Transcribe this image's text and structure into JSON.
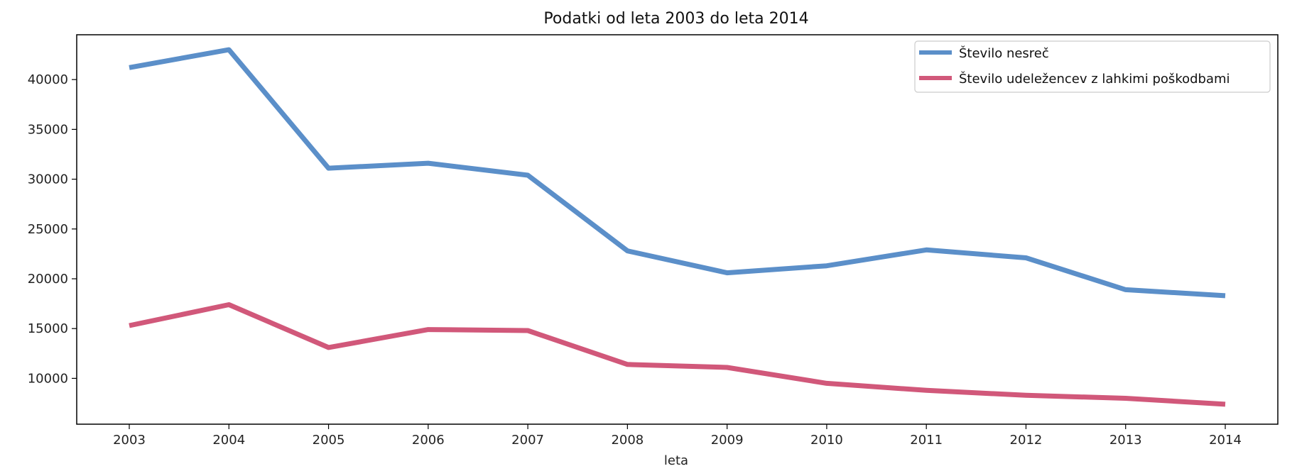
{
  "chart_data": {
    "type": "line",
    "title": "Podatki od leta 2003 do leta 2014",
    "xlabel": "leta",
    "ylabel": "",
    "x": [
      2003,
      2004,
      2005,
      2006,
      2007,
      2008,
      2009,
      2010,
      2011,
      2012,
      2013,
      2014
    ],
    "xticks": [
      "2003",
      "2004",
      "2005",
      "2006",
      "2007",
      "2008",
      "2009",
      "2010",
      "2011",
      "2012",
      "2013",
      "2014"
    ],
    "yticks": [
      "10000",
      "15000",
      "20000",
      "25000",
      "30000",
      "35000",
      "40000"
    ],
    "ylim": [
      5400,
      44500
    ],
    "grid": false,
    "legend_position": "top-right",
    "series": [
      {
        "name": "Število nesreč",
        "color": "#5b8fc9",
        "values": [
          41200,
          43000,
          31100,
          31600,
          30400,
          22800,
          20600,
          21300,
          22900,
          22100,
          18900,
          18300
        ]
      },
      {
        "name": "Število udeležencev z lahkimi poškodbami",
        "color": "#d1587a",
        "values": [
          15300,
          17400,
          13100,
          14900,
          14800,
          11400,
          11100,
          9500,
          8800,
          8300,
          8000,
          7400
        ]
      }
    ]
  }
}
